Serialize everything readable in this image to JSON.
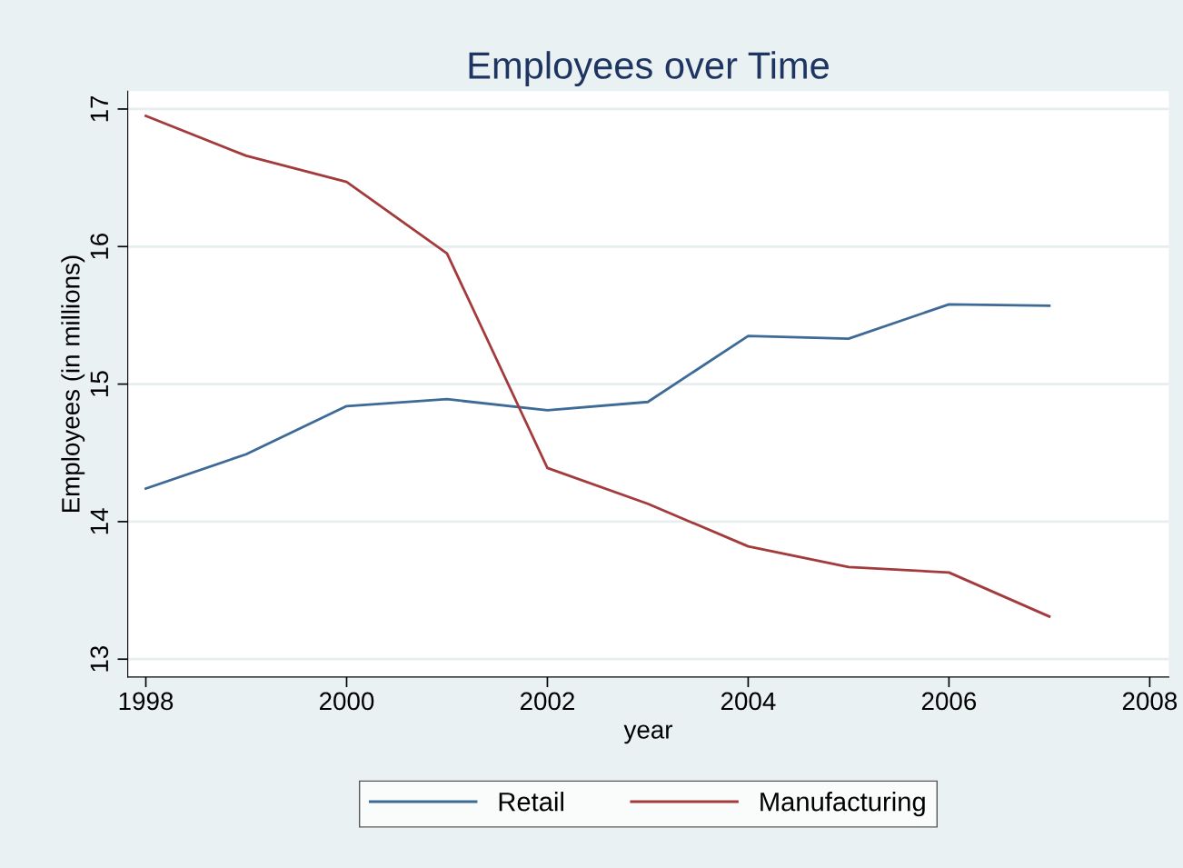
{
  "chart_data": {
    "type": "line",
    "title": "Employees over Time",
    "xlabel": "year",
    "ylabel": "Employees (in millions)",
    "x": [
      1998,
      1999,
      2000,
      2001,
      2002,
      2003,
      2004,
      2005,
      2006,
      2007
    ],
    "series": [
      {
        "name": "Retail",
        "color": "#3d6a96",
        "values": [
          14.24,
          14.49,
          14.84,
          14.89,
          14.81,
          14.87,
          15.35,
          15.33,
          15.58,
          15.57
        ]
      },
      {
        "name": "Manufacturing",
        "color": "#a33a3c",
        "values": [
          16.95,
          16.66,
          16.47,
          15.95,
          14.39,
          14.13,
          13.82,
          13.67,
          13.63,
          13.31
        ]
      }
    ],
    "xlim": [
      1997.82,
      2008.19
    ],
    "ylim": [
      12.87,
      17.13
    ],
    "xticks": [
      1998,
      2000,
      2002,
      2004,
      2006,
      2008
    ],
    "yticks": [
      13,
      14,
      15,
      16,
      17
    ],
    "grid": "y",
    "legend": "bottom",
    "marker": "none",
    "line_style": "solid"
  }
}
